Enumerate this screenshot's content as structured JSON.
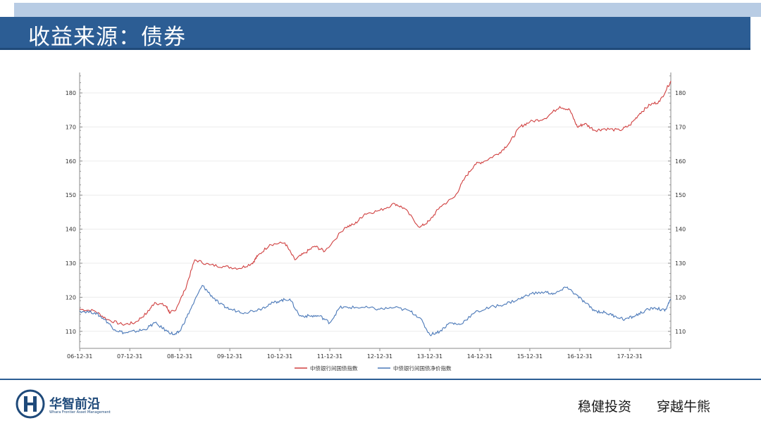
{
  "header": {
    "title": "收益来源：债券"
  },
  "footer": {
    "brand_name": "华智前沿",
    "brand_sub": "Whara Frontier Asset Management",
    "slogan_1": "稳健投资",
    "slogan_2": "穿越牛熊"
  },
  "colors": {
    "series_total": "#d04040",
    "series_net": "#4a78b8",
    "title_bar": "#2c5d94"
  },
  "chart_data": {
    "type": "line",
    "title": "",
    "xlabel": "",
    "ylabel": "",
    "ylim": [
      105,
      186
    ],
    "yticks": [
      110,
      120,
      130,
      140,
      150,
      160,
      170,
      180
    ],
    "ytick_labels": [
      "110",
      "120",
      "130",
      "140",
      "150",
      "160",
      "170",
      "180"
    ],
    "xlim": [
      2006.997,
      2018.82
    ],
    "xticks": [
      "06-12-31",
      "07-12-31",
      "08-12-31",
      "09-12-31",
      "10-12-31",
      "11-12-31",
      "12-12-31",
      "13-12-31",
      "14-12-31",
      "15-12-31",
      "16-12-31",
      "17-12-31"
    ],
    "xtick_pos": [
      2007.0,
      2008.0,
      2009.0,
      2010.0,
      2011.0,
      2012.0,
      2013.0,
      2014.0,
      2015.0,
      2016.0,
      2017.0,
      2018.0
    ],
    "legend_position": "bottom",
    "series": [
      {
        "name": "中债银行间国债指数",
        "color": "#d04040",
        "x": [
          2007.0,
          2007.3,
          2007.55,
          2007.85,
          2008.1,
          2008.35,
          2008.5,
          2008.72,
          2008.8,
          2008.9,
          2009.1,
          2009.3,
          2009.6,
          2009.9,
          2010.2,
          2010.45,
          2010.55,
          2010.8,
          2011.1,
          2011.3,
          2011.5,
          2011.7,
          2011.9,
          2012.3,
          2012.5,
          2012.7,
          2013.0,
          2013.3,
          2013.5,
          2013.8,
          2014.0,
          2014.2,
          2014.5,
          2014.7,
          2014.9,
          2015.1,
          2015.4,
          2015.6,
          2015.8,
          2016.0,
          2016.3,
          2016.6,
          2016.8,
          2016.95,
          2017.1,
          2017.3,
          2017.5,
          2017.8,
          2018.0,
          2018.2,
          2018.4,
          2018.6,
          2018.82
        ],
        "values": [
          116.5,
          116.0,
          113.5,
          112.0,
          112.5,
          115.5,
          118.5,
          117.5,
          115.5,
          116.0,
          122.0,
          131.0,
          129.5,
          129.0,
          128.5,
          130.0,
          132.0,
          135.5,
          136.0,
          131.0,
          133.0,
          135.0,
          133.5,
          140.5,
          141.5,
          144.5,
          145.5,
          147.5,
          146.0,
          140.5,
          142.5,
          146.5,
          149.5,
          155.0,
          159.0,
          160.0,
          162.5,
          165.5,
          170.0,
          171.5,
          172.5,
          176.0,
          175.0,
          170.0,
          171.0,
          169.0,
          169.5,
          169.0,
          170.5,
          174.0,
          176.5,
          177.5,
          183.5
        ]
      },
      {
        "name": "中债银行间国债净价指数",
        "color": "#4a78b8",
        "x": [
          2007.0,
          2007.3,
          2007.5,
          2007.7,
          2007.9,
          2008.1,
          2008.3,
          2008.5,
          2008.75,
          2008.9,
          2009.0,
          2009.2,
          2009.45,
          2009.6,
          2009.8,
          2010.0,
          2010.3,
          2010.6,
          2010.8,
          2011.0,
          2011.2,
          2011.4,
          2011.6,
          2011.8,
          2012.0,
          2012.2,
          2012.4,
          2012.7,
          2013.0,
          2013.3,
          2013.6,
          2013.8,
          2014.0,
          2014.2,
          2014.4,
          2014.6,
          2014.9,
          2015.2,
          2015.5,
          2015.8,
          2016.0,
          2016.3,
          2016.5,
          2016.75,
          2016.9,
          2017.1,
          2017.3,
          2017.5,
          2017.7,
          2017.9,
          2018.1,
          2018.3,
          2018.5,
          2018.7,
          2018.82
        ],
        "values": [
          116.0,
          115.5,
          113.5,
          110.5,
          109.5,
          110.0,
          110.5,
          112.5,
          110.0,
          109.0,
          110.0,
          116.0,
          123.5,
          121.0,
          118.0,
          116.5,
          115.5,
          116.5,
          118.0,
          119.0,
          119.5,
          114.5,
          114.5,
          114.5,
          112.5,
          117.0,
          117.0,
          117.0,
          116.5,
          117.0,
          116.0,
          114.0,
          109.0,
          110.0,
          112.5,
          112.0,
          115.5,
          117.0,
          118.0,
          119.5,
          121.0,
          121.5,
          121.0,
          123.0,
          121.0,
          118.5,
          116.0,
          115.5,
          114.5,
          113.5,
          114.5,
          116.0,
          117.0,
          116.0,
          119.5
        ]
      }
    ]
  }
}
